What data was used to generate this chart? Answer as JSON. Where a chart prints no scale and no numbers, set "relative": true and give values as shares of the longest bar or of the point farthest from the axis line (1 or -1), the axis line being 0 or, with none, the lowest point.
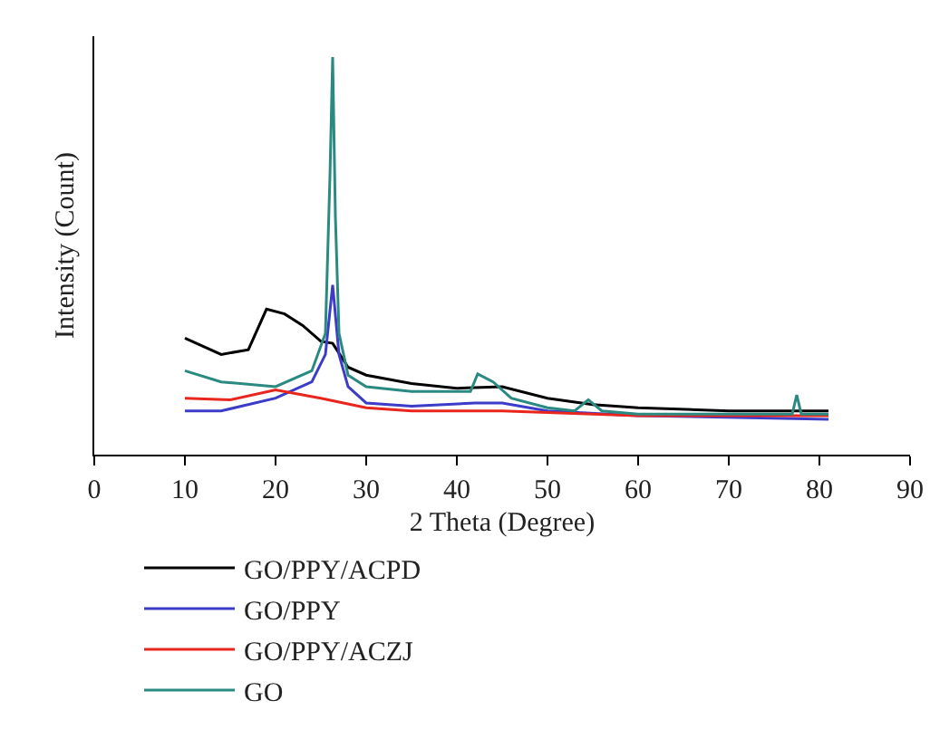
{
  "chart_data": {
    "type": "line",
    "xlabel": "2 Theta (Degree)",
    "ylabel": "Intensity (Count)",
    "relative": true,
    "xlim": [
      0,
      90
    ],
    "xticks": [
      0,
      10,
      20,
      30,
      40,
      50,
      60,
      70,
      80,
      90
    ],
    "grid": false,
    "legend": "bottom",
    "marker": "none",
    "line_style": "solid",
    "series": [
      {
        "name": "GO/PPY/ACPD",
        "color": "#000000",
        "x": [
          10,
          14,
          17,
          19,
          21,
          23,
          25,
          26.3,
          28,
          30,
          35,
          40,
          45,
          50,
          55,
          60,
          70,
          78,
          81
        ],
        "values": [
          0.293,
          0.252,
          0.264,
          0.366,
          0.354,
          0.325,
          0.285,
          0.28,
          0.22,
          0.2,
          0.179,
          0.167,
          0.171,
          0.142,
          0.126,
          0.118,
          0.11,
          0.11,
          0.11
        ]
      },
      {
        "name": "GO/PPY",
        "color": "#3c3cc8",
        "x": [
          10,
          14,
          20,
          24,
          25.5,
          26.3,
          27,
          28,
          30,
          35,
          42,
          45,
          50,
          60,
          81
        ],
        "values": [
          0.11,
          0.11,
          0.142,
          0.183,
          0.252,
          0.427,
          0.252,
          0.171,
          0.13,
          0.122,
          0.13,
          0.13,
          0.11,
          0.098,
          0.089
        ]
      },
      {
        "name": "GO/PPY/ACZJ",
        "color": "#e8261d",
        "x": [
          10,
          15,
          20,
          25,
          30,
          35,
          45,
          60,
          81
        ],
        "values": [
          0.142,
          0.138,
          0.163,
          0.142,
          0.118,
          0.11,
          0.11,
          0.098,
          0.098
        ]
      },
      {
        "name": "GO",
        "color": "#2a8a82",
        "x": [
          10,
          14,
          20,
          24,
          25.5,
          26,
          26.3,
          26.6,
          27,
          28,
          30,
          35,
          41.5,
          42.3,
          44,
          46,
          50,
          53,
          54.5,
          56,
          60,
          70,
          77,
          77.5,
          78,
          81
        ],
        "values": [
          0.211,
          0.183,
          0.171,
          0.211,
          0.305,
          0.7,
          1,
          0.6,
          0.305,
          0.2,
          0.171,
          0.159,
          0.159,
          0.203,
          0.183,
          0.142,
          0.118,
          0.11,
          0.138,
          0.11,
          0.102,
          0.102,
          0.102,
          0.15,
          0.102,
          0.102
        ]
      }
    ]
  }
}
